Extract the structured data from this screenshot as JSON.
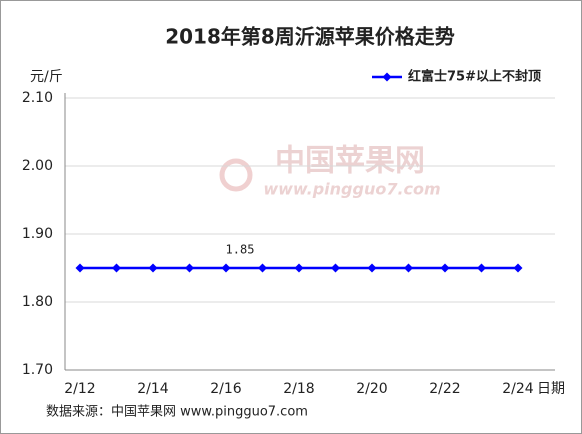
{
  "chart_data": {
    "type": "line",
    "title": "2018年第8周沂源苹果价格走势",
    "y_axis_label": "元/斤",
    "x_axis_label": "日期",
    "source": "数据来源：中国苹果网 www.pingguo7.com",
    "watermark": [
      "中国苹果网",
      "www.pingguo7.com"
    ],
    "categories": [
      "2/12",
      null,
      "2/14",
      null,
      "2/16",
      null,
      "2/18",
      null,
      "2/20",
      null,
      "2/22",
      null,
      "2/24"
    ],
    "series": [
      {
        "name": "红富士75#以上不封顶",
        "color": "#0000ff",
        "values": [
          1.85,
          1.85,
          1.85,
          1.85,
          1.85,
          1.85,
          1.85,
          1.85,
          1.85,
          1.85,
          1.85,
          1.85,
          1.85
        ]
      }
    ],
    "labeled_points": [
      4
    ],
    "ylim": [
      1.7,
      2.1
    ],
    "yticks": [
      {
        "value": 1.7,
        "label": "1.70"
      },
      {
        "value": 1.8,
        "label": "1.80"
      },
      {
        "value": 1.9,
        "label": "1.90"
      },
      {
        "value": 2,
        "label": "2.00"
      },
      {
        "value": 2.1,
        "label": "2.10"
      }
    ],
    "grid": true,
    "legend": "top-right"
  }
}
